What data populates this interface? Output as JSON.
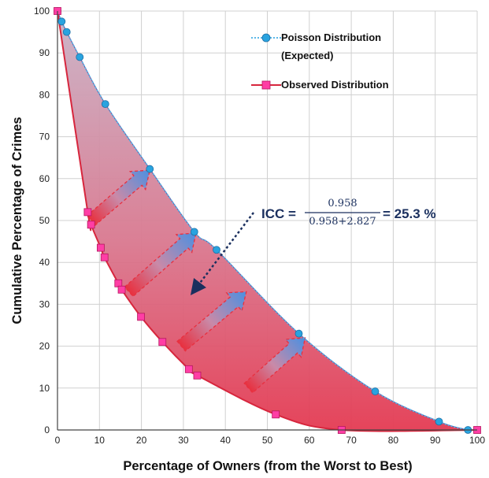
{
  "chart_data": {
    "type": "line",
    "xlabel": "Percentage of Owners (from the Worst to Best)",
    "ylabel": "Cumulative Percentage of Crimes",
    "xlim": [
      0,
      100
    ],
    "ylim": [
      0,
      100
    ],
    "x_ticks": [
      "0",
      "10",
      "20",
      "30",
      "40",
      "50",
      "60",
      "70",
      "80",
      "90",
      "100"
    ],
    "y_ticks": [
      "0",
      "10",
      "20",
      "30",
      "40",
      "50",
      "60",
      "70",
      "80",
      "90",
      "100"
    ],
    "grid": true,
    "legend_position": "top-right",
    "series": [
      {
        "name": "Poisson Distribution (Expected)",
        "legend_lines": [
          "Poisson Distribution",
          "(Expected)"
        ],
        "style": "dotted line with circle markers",
        "color": "#5bb8e8",
        "marker_color": "#29a3df",
        "points": [
          [
            0,
            100
          ],
          [
            1,
            97.5
          ],
          [
            2.2,
            95
          ],
          [
            5.3,
            89
          ],
          [
            11.4,
            77.8
          ],
          [
            22,
            62.3
          ],
          [
            32.6,
            47.3
          ],
          [
            37.9,
            43
          ],
          [
            57.5,
            23
          ],
          [
            75.7,
            9.2
          ],
          [
            90.9,
            2
          ],
          [
            97.8,
            0
          ]
        ]
      },
      {
        "name": "Observed Distribution",
        "legend_lines": [
          "Observed Distribution"
        ],
        "style": "solid line with square markers",
        "color": "#d7263d",
        "marker_color": "#ff3ea5",
        "points": [
          [
            0,
            100
          ],
          [
            7.2,
            52
          ],
          [
            8,
            49
          ],
          [
            10.3,
            43.5
          ],
          [
            11.2,
            41.2
          ],
          [
            14.5,
            35
          ],
          [
            15.3,
            33.5
          ],
          [
            19.9,
            27
          ],
          [
            25,
            21
          ],
          [
            31.3,
            14.5
          ],
          [
            33.3,
            13
          ],
          [
            52,
            3.7
          ],
          [
            67.7,
            0
          ],
          [
            100,
            0
          ]
        ]
      }
    ],
    "annotation": {
      "prefix": "ICC =",
      "numerator": "0.958",
      "denominator": "0.958+2.827",
      "result": "= 25.3 %"
    }
  },
  "colors": {
    "grid": "#d0d0d0",
    "fill_top": "#c9a3b8",
    "fill_bottom": "#e0243a",
    "arrow_start": "#e8303f",
    "arrow_end": "#4a90e2",
    "annotation_text": "#1a2f5e"
  }
}
